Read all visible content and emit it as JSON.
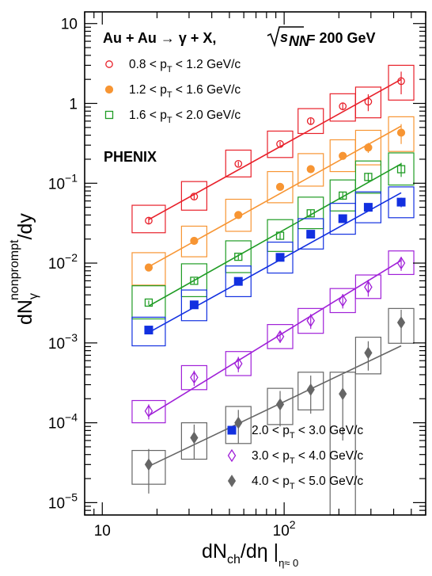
{
  "chart_data": {
    "type": "scatter",
    "title": "Au + Au → γ + X,",
    "title_energy": "= 200 GeV",
    "experiment": "PHENIX",
    "xlabel": "dN",
    "xlabel_sub": "ch",
    "xlabel_tail": "/dη |",
    "xlabel_sub2": "η≈ 0",
    "ylabel_main": "dN",
    "ylabel_sub": "γ",
    "ylabel_sup": "nonprompt",
    "ylabel_tail": "/dy",
    "x_scale": "log",
    "y_scale": "log",
    "xlim": [
      8,
      600
    ],
    "ylim": [
      7e-06,
      14
    ],
    "x_ticks": [
      {
        "label": "10",
        "value": 10
      },
      {
        "label": "10",
        "exp": "2",
        "value": 100
      }
    ],
    "y_ticks": [
      {
        "base": "10",
        "exp": "",
        "value": 10
      },
      {
        "base": "1",
        "exp": "",
        "value": 1
      },
      {
        "base": "10",
        "exp": "−1",
        "value": 0.1
      },
      {
        "base": "10",
        "exp": "−2",
        "value": 0.01
      },
      {
        "base": "10",
        "exp": "−3",
        "value": 0.001
      },
      {
        "base": "10",
        "exp": "−4",
        "value": 0.0001
      },
      {
        "base": "10",
        "exp": "−5",
        "value": 1e-05
      }
    ],
    "x": [
      18,
      32,
      56,
      95,
      140,
      210,
      290,
      440
    ],
    "series": [
      {
        "name": "0.8 < p_T < 1.2 GeV/c",
        "label_pre": "0.8 < p",
        "label_post": " < 1.2 GeV/c",
        "color": "#e8202a",
        "marker": "circle-open",
        "values": [
          0.034,
          0.068,
          0.175,
          0.31,
          0.6,
          0.92,
          1.05,
          1.9
        ],
        "err_stat": [
          0.003,
          0.005,
          0.012,
          0.02,
          0.05,
          0.1,
          0.25,
          0.6
        ],
        "sys_lo": [
          0.024,
          0.046,
          0.12,
          0.21,
          0.42,
          0.6,
          0.66,
          1.1
        ],
        "sys_hi": [
          0.053,
          0.105,
          0.26,
          0.45,
          0.86,
          1.32,
          1.6,
          3.0
        ],
        "fit": [
          0.035,
          2.0
        ]
      },
      {
        "name": "1.2 < p_T < 1.6 GeV/c",
        "label_pre": "1.2 < p",
        "label_post": " < 1.6 GeV/c",
        "color": "#f79533",
        "marker": "circle-filled",
        "values": [
          0.0088,
          0.019,
          0.04,
          0.09,
          0.15,
          0.22,
          0.28,
          0.43
        ],
        "err_stat": [
          0.0005,
          0.0012,
          0.003,
          0.006,
          0.012,
          0.02,
          0.04,
          0.12
        ],
        "sys_lo": [
          0.0053,
          0.012,
          0.025,
          0.057,
          0.092,
          0.14,
          0.17,
          0.25
        ],
        "sys_hi": [
          0.0135,
          0.029,
          0.063,
          0.14,
          0.235,
          0.35,
          0.46,
          0.68
        ],
        "fit": [
          0.009,
          0.52
        ]
      },
      {
        "name": "1.6 < p_T < 2.0 GeV/c",
        "label_pre": "1.6 < p",
        "label_post": " < 2.0 GeV/c",
        "color": "#1f9c24",
        "marker": "square-open",
        "values": [
          0.0032,
          0.006,
          0.012,
          0.022,
          0.042,
          0.07,
          0.12,
          0.15
        ],
        "err_stat": [
          0.0002,
          0.0005,
          0.001,
          0.002,
          0.004,
          0.008,
          0.015,
          0.03
        ],
        "sys_lo": [
          0.002,
          0.0038,
          0.0076,
          0.014,
          0.027,
          0.045,
          0.075,
          0.095
        ],
        "sys_hi": [
          0.0052,
          0.0098,
          0.019,
          0.035,
          0.067,
          0.11,
          0.19,
          0.24
        ],
        "fit": [
          0.0029,
          0.175
        ]
      },
      {
        "name": "2.0 < p_T < 3.0 GeV/c",
        "label_pre": "2.0 < p",
        "label_post": " < 3.0 GeV/c",
        "color": "#1230e0",
        "marker": "square-filled",
        "values": [
          0.00145,
          0.003,
          0.0059,
          0.0118,
          0.023,
          0.036,
          0.05,
          0.058
        ],
        "err_stat": [
          0.0001,
          0.0002,
          0.0004,
          0.0008,
          0.0015,
          0.003,
          0.005,
          0.008
        ],
        "sys_lo": [
          0.00092,
          0.0019,
          0.0038,
          0.0075,
          0.015,
          0.023,
          0.032,
          0.037
        ],
        "sys_hi": [
          0.0021,
          0.0046,
          0.0092,
          0.0183,
          0.036,
          0.056,
          0.078,
          0.09
        ],
        "fit": [
          0.00135,
          0.076
        ]
      },
      {
        "name": "3.0 < p_T < 4.0 GeV/c",
        "label_pre": "3.0 < p",
        "label_post": " < 4.0 GeV/c",
        "color": "#a020d8",
        "marker": "diamond-open",
        "values": [
          0.00014,
          0.00037,
          0.00055,
          0.0012,
          0.0019,
          0.0034,
          0.005,
          0.01
        ],
        "err_stat": [
          3e-05,
          8e-05,
          0.00012,
          0.0002,
          0.0004,
          0.0007,
          0.0012,
          0.002
        ],
        "sys_lo": [
          0.0001,
          0.00026,
          0.00039,
          0.00085,
          0.00132,
          0.0024,
          0.0036,
          0.0072
        ],
        "sys_hi": [
          0.00019,
          0.00052,
          0.00078,
          0.0017,
          0.0027,
          0.0048,
          0.0071,
          0.0142
        ],
        "fit": [
          0.000123,
          0.0108
        ]
      },
      {
        "name": "4.0 < p_T < 5.0 GeV/c",
        "label_pre": "4.0 < p",
        "label_post": " < 5.0 GeV/c",
        "color": "#666666",
        "marker": "diamond-filled",
        "values": [
          3e-05,
          6.5e-05,
          0.0001,
          0.00017,
          0.00026,
          0.00023,
          0.00075,
          0.0018
        ],
        "err_stat": [
          1.7e-05,
          3e-05,
          4.5e-05,
          8e-05,
          0.00013,
          0.00017,
          0.0003,
          0.0008
        ],
        "sys_lo": [
          1.7e-05,
          3.5e-05,
          5.5e-05,
          9.5e-05,
          0.000145,
          5e-06,
          0.00041,
          0.00099
        ],
        "sys_hi": [
          4.5e-05,
          0.0001,
          0.00016,
          0.00027,
          0.00043,
          0.00043,
          0.00118,
          0.0027
        ],
        "fit": [
          2.85e-05,
          0.00092
        ]
      }
    ]
  }
}
